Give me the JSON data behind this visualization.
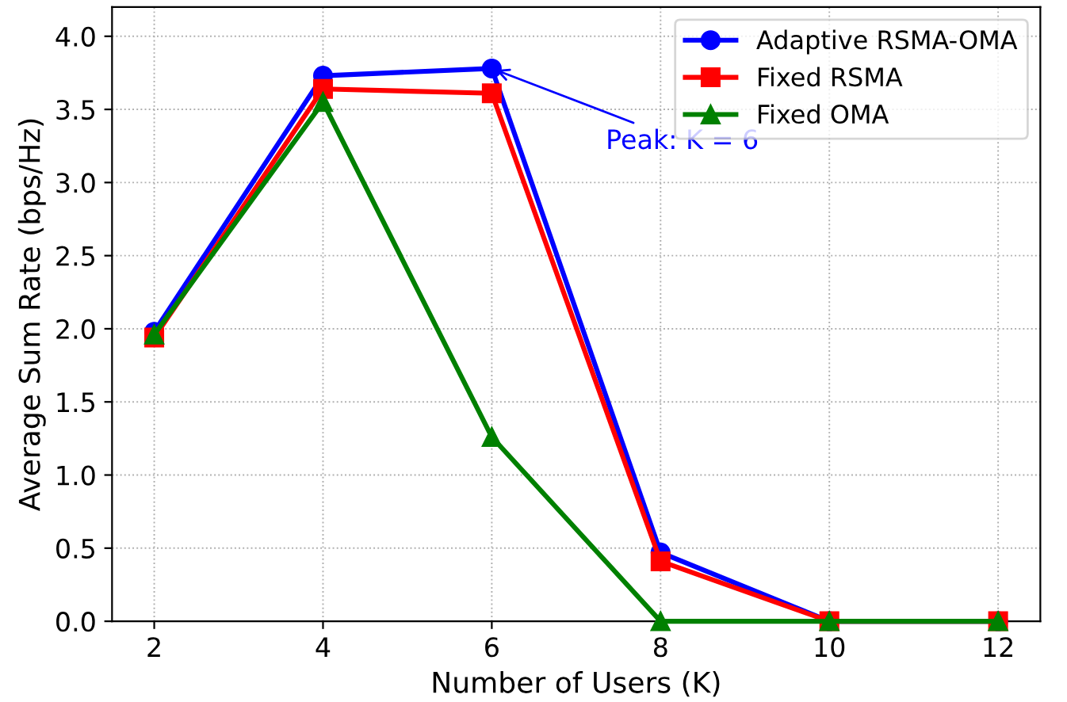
{
  "chart_data": {
    "type": "line",
    "xlabel": "Number of Users (K)",
    "ylabel": "Average Sum Rate (bps/Hz)",
    "x": [
      2,
      4,
      6,
      8,
      10,
      12
    ],
    "series": [
      {
        "name": "Adaptive RSMA-OMA",
        "color": "#0000ff",
        "marker": "circle",
        "values": [
          1.98,
          3.73,
          3.78,
          0.47,
          0,
          0
        ]
      },
      {
        "name": "Fixed RSMA",
        "color": "#ff0000",
        "marker": "square",
        "values": [
          1.94,
          3.64,
          3.61,
          0.41,
          0,
          0
        ]
      },
      {
        "name": "Fixed OMA",
        "color": "#008000",
        "marker": "triangle",
        "values": [
          1.96,
          3.55,
          1.26,
          0,
          0,
          0
        ]
      }
    ],
    "annotations": [
      {
        "text": "Peak: K = 6",
        "x": 6,
        "y": 3.78
      }
    ],
    "xlim": [
      1.5,
      12.5
    ],
    "ylim": [
      0,
      4.2
    ],
    "xticks": [
      2,
      4,
      6,
      8,
      10,
      12
    ],
    "yticks": [
      {
        "value": 0,
        "label": "0.0"
      },
      {
        "value": 0.5,
        "label": "0.5"
      },
      {
        "value": 1,
        "label": "1.0"
      },
      {
        "value": 1.5,
        "label": "1.5"
      },
      {
        "value": 2,
        "label": "2.0"
      },
      {
        "value": 2.5,
        "label": "2.5"
      },
      {
        "value": 3,
        "label": "3.0"
      },
      {
        "value": 3.5,
        "label": "3.5"
      },
      {
        "value": 4,
        "label": "4.0"
      }
    ],
    "grid": true,
    "legend": "top right",
    "line_style": "solid"
  }
}
